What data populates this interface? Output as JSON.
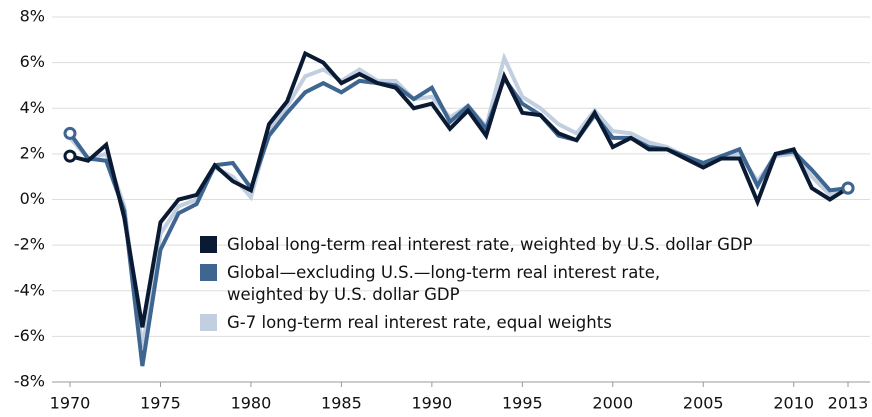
{
  "chart_data": {
    "type": "line",
    "x": [
      1970,
      1971,
      1972,
      1973,
      1974,
      1975,
      1976,
      1977,
      1978,
      1979,
      1980,
      1981,
      1982,
      1983,
      1984,
      1985,
      1986,
      1987,
      1988,
      1989,
      1990,
      1991,
      1992,
      1993,
      1994,
      1995,
      1996,
      1997,
      1998,
      1999,
      2000,
      2001,
      2002,
      2003,
      2004,
      2005,
      2006,
      2007,
      2008,
      2009,
      2010,
      2011,
      2012,
      2013
    ],
    "series": [
      {
        "name": "Global long-term real interest rate, weighted by U.S. dollar GDP",
        "color": "#0b1a33",
        "values": [
          1.9,
          1.7,
          2.4,
          -0.8,
          -5.6,
          -1.0,
          0.0,
          0.2,
          1.5,
          0.8,
          0.4,
          3.3,
          4.3,
          6.4,
          6.0,
          5.1,
          5.5,
          5.1,
          4.9,
          4.0,
          4.2,
          3.1,
          3.9,
          2.8,
          5.4,
          3.8,
          3.7,
          2.9,
          2.6,
          3.8,
          2.3,
          2.7,
          2.2,
          2.2,
          1.8,
          1.4,
          1.8,
          1.8,
          -0.1,
          2.0,
          2.2,
          0.5,
          0.0,
          0.5
        ]
      },
      {
        "name": "Global—excluding U.S.—long-term real interest rate, weighted by U.S. dollar GDP",
        "color": "#3e6690",
        "values": [
          2.9,
          1.8,
          1.7,
          -0.5,
          -7.3,
          -2.2,
          -0.6,
          -0.2,
          1.5,
          1.6,
          0.5,
          2.8,
          3.8,
          4.7,
          5.1,
          4.7,
          5.2,
          5.1,
          5.0,
          4.4,
          4.9,
          3.4,
          4.1,
          3.1,
          5.3,
          4.2,
          3.7,
          2.8,
          2.6,
          3.7,
          2.7,
          2.7,
          2.3,
          2.2,
          1.9,
          1.6,
          1.9,
          2.2,
          0.6,
          2.0,
          2.1,
          1.3,
          0.4,
          0.5
        ]
      },
      {
        "name": "G-7 long-term real interest rate, equal weights",
        "color": "#c2cfe0",
        "values": [
          2.7,
          1.8,
          2.0,
          -0.3,
          -6.5,
          -1.5,
          -0.3,
          0.0,
          1.4,
          1.0,
          0.1,
          3.0,
          4.1,
          5.4,
          5.7,
          5.2,
          5.7,
          5.2,
          5.2,
          4.4,
          4.5,
          3.6,
          4.1,
          3.2,
          6.2,
          4.5,
          4.0,
          3.3,
          2.9,
          3.9,
          3.0,
          2.9,
          2.5,
          2.3,
          1.9,
          1.6,
          1.9,
          2.0,
          0.8,
          1.9,
          2.0,
          1.0,
          0.2,
          0.4
        ]
      }
    ],
    "xlim": [
      1970,
      2013
    ],
    "xticks": [
      1970,
      1975,
      1980,
      1985,
      1990,
      1995,
      2000,
      2005,
      2010,
      2013
    ],
    "ylim": [
      -8,
      8
    ],
    "yticks": [
      {
        "value": -8,
        "label": "-8%"
      },
      {
        "value": -6,
        "label": "-6%"
      },
      {
        "value": -4,
        "label": "-4%"
      },
      {
        "value": -2,
        "label": "-2%"
      },
      {
        "value": 0,
        "label": "0%"
      },
      {
        "value": 2,
        "label": "2%"
      },
      {
        "value": 4,
        "label": "4%"
      },
      {
        "value": 6,
        "label": "6%"
      },
      {
        "value": 8,
        "label": "8%"
      }
    ],
    "grid": true
  }
}
